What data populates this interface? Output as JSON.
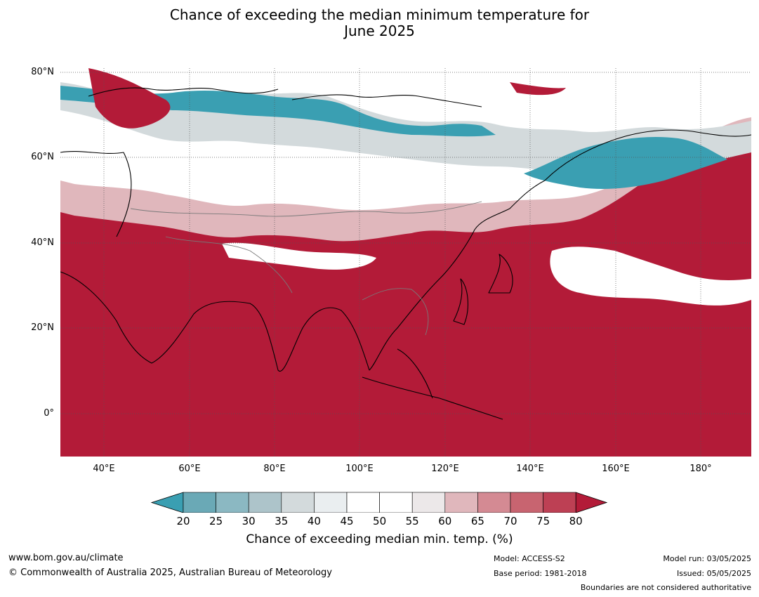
{
  "title_line1": "Chance of exceeding the median minimum temperature for",
  "title_line2": "June 2025",
  "map": {
    "lat_labels": [
      "80°N",
      "60°N",
      "40°N",
      "20°N",
      "0°"
    ],
    "lon_labels": [
      "40°E",
      "60°E",
      "80°E",
      "100°E",
      "120°E",
      "140°E",
      "160°E",
      "180°"
    ],
    "colors": {
      "ocean_high": "#b31b38",
      "land_line": "#000000",
      "border_line": "#7a7a7a"
    }
  },
  "colorbar": {
    "ticks": [
      "20",
      "25",
      "30",
      "35",
      "40",
      "45",
      "50",
      "55",
      "60",
      "65",
      "70",
      "75",
      "80"
    ],
    "colors": [
      "#3a9fb2",
      "#6aa9b6",
      "#8bb8c2",
      "#adc4ca",
      "#d3dadc",
      "#eaeef0",
      "#ffffff",
      "#ffffff",
      "#ece8e9",
      "#e0b7bc",
      "#d48a93",
      "#c86470",
      "#bd4054",
      "#b31b38"
    ],
    "label": "Chance of exceeding median min. temp. (%)"
  },
  "footer": {
    "url": "www.bom.gov.au/climate",
    "copyright": "© Commonwealth of Australia 2025, Australian Bureau of Meteorology",
    "model": "Model: ACCESS-S2",
    "base_period": "Base period: 1981-2018",
    "model_run": "Model run: 03/05/2025",
    "issued": "Issued: 05/05/2025",
    "disclaimer": "Boundaries are not considered authoritative"
  }
}
